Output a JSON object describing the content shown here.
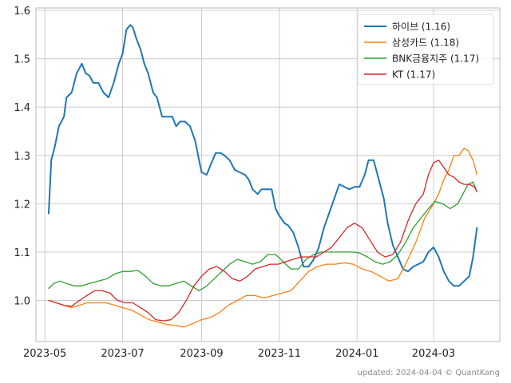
{
  "footnote": "updated: 2024-04-04 © QuantKang",
  "chart_data": {
    "type": "line",
    "title": "",
    "xlabel": "",
    "ylabel": "",
    "ylim": [
      0.915,
      1.605
    ],
    "xlim": [
      "2023-04-24",
      "2024-04-22"
    ],
    "grid": true,
    "legend_position": "top-right",
    "y_ticks": [
      1.0,
      1.1,
      1.2,
      1.3,
      1.4,
      1.5,
      1.6
    ],
    "y_tick_labels": [
      "1.0",
      "1.1",
      "1.2",
      "1.3",
      "1.4",
      "1.5",
      "1.6"
    ],
    "x_ticks": [
      "2023-05-01",
      "2023-07-01",
      "2023-09-01",
      "2023-11-01",
      "2024-01-01",
      "2024-03-01"
    ],
    "x_tick_labels": [
      "2023-05",
      "2023-07",
      "2023-09",
      "2023-11",
      "2024-01",
      "2024-03"
    ],
    "series": [
      {
        "name": "하이브 (1.16)",
        "color": "#1f77b4",
        "points": [
          [
            "2023-05-04",
            1.18
          ],
          [
            "2023-05-06",
            1.29
          ],
          [
            "2023-05-09",
            1.32
          ],
          [
            "2023-05-12",
            1.36
          ],
          [
            "2023-05-16",
            1.38
          ],
          [
            "2023-05-18",
            1.42
          ],
          [
            "2023-05-22",
            1.43
          ],
          [
            "2023-05-26",
            1.47
          ],
          [
            "2023-05-30",
            1.49
          ],
          [
            "2023-06-02",
            1.47
          ],
          [
            "2023-06-05",
            1.465
          ],
          [
            "2023-06-08",
            1.45
          ],
          [
            "2023-06-12",
            1.45
          ],
          [
            "2023-06-16",
            1.43
          ],
          [
            "2023-06-20",
            1.42
          ],
          [
            "2023-06-24",
            1.45
          ],
          [
            "2023-06-28",
            1.49
          ],
          [
            "2023-07-01",
            1.51
          ],
          [
            "2023-07-04",
            1.56
          ],
          [
            "2023-07-07",
            1.57
          ],
          [
            "2023-07-09",
            1.565
          ],
          [
            "2023-07-12",
            1.54
          ],
          [
            "2023-07-15",
            1.52
          ],
          [
            "2023-07-18",
            1.49
          ],
          [
            "2023-07-21",
            1.47
          ],
          [
            "2023-07-25",
            1.43
          ],
          [
            "2023-07-28",
            1.42
          ],
          [
            "2023-08-01",
            1.38
          ],
          [
            "2023-08-05",
            1.38
          ],
          [
            "2023-08-09",
            1.38
          ],
          [
            "2023-08-12",
            1.36
          ],
          [
            "2023-08-15",
            1.37
          ],
          [
            "2023-08-19",
            1.37
          ],
          [
            "2023-08-23",
            1.36
          ],
          [
            "2023-08-27",
            1.33
          ],
          [
            "2023-08-30",
            1.29
          ],
          [
            "2023-09-01",
            1.265
          ],
          [
            "2023-09-05",
            1.26
          ],
          [
            "2023-09-08",
            1.28
          ],
          [
            "2023-09-12",
            1.305
          ],
          [
            "2023-09-16",
            1.305
          ],
          [
            "2023-09-19",
            1.3
          ],
          [
            "2023-09-23",
            1.29
          ],
          [
            "2023-09-27",
            1.27
          ],
          [
            "2023-10-01",
            1.265
          ],
          [
            "2023-10-05",
            1.26
          ],
          [
            "2023-10-08",
            1.25
          ],
          [
            "2023-10-11",
            1.23
          ],
          [
            "2023-10-15",
            1.22
          ],
          [
            "2023-10-18",
            1.23
          ],
          [
            "2023-10-22",
            1.23
          ],
          [
            "2023-10-26",
            1.23
          ],
          [
            "2023-10-29",
            1.19
          ],
          [
            "2023-11-01",
            1.175
          ],
          [
            "2023-11-05",
            1.16
          ],
          [
            "2023-11-08",
            1.155
          ],
          [
            "2023-11-12",
            1.14
          ],
          [
            "2023-11-16",
            1.11
          ],
          [
            "2023-11-20",
            1.07
          ],
          [
            "2023-11-24",
            1.07
          ],
          [
            "2023-11-28",
            1.085
          ],
          [
            "2023-12-02",
            1.11
          ],
          [
            "2023-12-06",
            1.15
          ],
          [
            "2023-12-10",
            1.18
          ],
          [
            "2023-12-14",
            1.21
          ],
          [
            "2023-12-18",
            1.24
          ],
          [
            "2023-12-22",
            1.235
          ],
          [
            "2023-12-26",
            1.23
          ],
          [
            "2023-12-30",
            1.235
          ],
          [
            "2024-01-03",
            1.235
          ],
          [
            "2024-01-07",
            1.26
          ],
          [
            "2024-01-10",
            1.29
          ],
          [
            "2024-01-14",
            1.29
          ],
          [
            "2024-01-18",
            1.25
          ],
          [
            "2024-01-22",
            1.21
          ],
          [
            "2024-01-25",
            1.16
          ],
          [
            "2024-01-29",
            1.115
          ],
          [
            "2024-02-02",
            1.09
          ],
          [
            "2024-02-06",
            1.065
          ],
          [
            "2024-02-10",
            1.06
          ],
          [
            "2024-02-14",
            1.07
          ],
          [
            "2024-02-18",
            1.075
          ],
          [
            "2024-02-22",
            1.08
          ],
          [
            "2024-02-26",
            1.1
          ],
          [
            "2024-03-01",
            1.11
          ],
          [
            "2024-03-05",
            1.09
          ],
          [
            "2024-03-09",
            1.06
          ],
          [
            "2024-03-13",
            1.04
          ],
          [
            "2024-03-17",
            1.03
          ],
          [
            "2024-03-21",
            1.03
          ],
          [
            "2024-03-25",
            1.04
          ],
          [
            "2024-03-29",
            1.05
          ],
          [
            "2024-04-01",
            1.09
          ],
          [
            "2024-04-04",
            1.15
          ]
        ]
      },
      {
        "name": "삼성카드 (1.18)",
        "color": "#ff7f0e",
        "points": [
          [
            "2023-05-04",
            1.0
          ],
          [
            "2023-05-10",
            0.995
          ],
          [
            "2023-05-16",
            0.99
          ],
          [
            "2023-05-22",
            0.985
          ],
          [
            "2023-05-28",
            0.99
          ],
          [
            "2023-06-03",
            0.995
          ],
          [
            "2023-06-10",
            0.995
          ],
          [
            "2023-06-18",
            0.995
          ],
          [
            "2023-06-25",
            0.99
          ],
          [
            "2023-07-01",
            0.985
          ],
          [
            "2023-07-08",
            0.98
          ],
          [
            "2023-07-15",
            0.97
          ],
          [
            "2023-07-22",
            0.96
          ],
          [
            "2023-07-29",
            0.955
          ],
          [
            "2023-08-05",
            0.95
          ],
          [
            "2023-08-12",
            0.948
          ],
          [
            "2023-08-18",
            0.945
          ],
          [
            "2023-08-25",
            0.952
          ],
          [
            "2023-09-01",
            0.96
          ],
          [
            "2023-09-08",
            0.965
          ],
          [
            "2023-09-15",
            0.975
          ],
          [
            "2023-09-22",
            0.99
          ],
          [
            "2023-09-29",
            1.0
          ],
          [
            "2023-10-06",
            1.01
          ],
          [
            "2023-10-13",
            1.01
          ],
          [
            "2023-10-20",
            1.005
          ],
          [
            "2023-10-27",
            1.01
          ],
          [
            "2023-11-03",
            1.015
          ],
          [
            "2023-11-10",
            1.02
          ],
          [
            "2023-11-17",
            1.04
          ],
          [
            "2023-11-24",
            1.06
          ],
          [
            "2023-12-01",
            1.07
          ],
          [
            "2023-12-08",
            1.075
          ],
          [
            "2023-12-15",
            1.075
          ],
          [
            "2023-12-22",
            1.078
          ],
          [
            "2023-12-29",
            1.075
          ],
          [
            "2024-01-05",
            1.065
          ],
          [
            "2024-01-12",
            1.06
          ],
          [
            "2024-01-19",
            1.05
          ],
          [
            "2024-01-26",
            1.04
          ],
          [
            "2024-02-02",
            1.045
          ],
          [
            "2024-02-09",
            1.08
          ],
          [
            "2024-02-16",
            1.12
          ],
          [
            "2024-02-23",
            1.17
          ],
          [
            "2024-03-01",
            1.2
          ],
          [
            "2024-03-05",
            1.22
          ],
          [
            "2024-03-09",
            1.25
          ],
          [
            "2024-03-13",
            1.27
          ],
          [
            "2024-03-17",
            1.3
          ],
          [
            "2024-03-21",
            1.3
          ],
          [
            "2024-03-25",
            1.315
          ],
          [
            "2024-03-28",
            1.31
          ],
          [
            "2024-04-01",
            1.29
          ],
          [
            "2024-04-04",
            1.26
          ]
        ]
      },
      {
        "name": "BNK금융지주 (1.17)",
        "color": "#2ca02c",
        "points": [
          [
            "2023-05-04",
            1.025
          ],
          [
            "2023-05-08",
            1.035
          ],
          [
            "2023-05-13",
            1.04
          ],
          [
            "2023-05-18",
            1.035
          ],
          [
            "2023-05-24",
            1.03
          ],
          [
            "2023-05-30",
            1.03
          ],
          [
            "2023-06-05",
            1.035
          ],
          [
            "2023-06-12",
            1.04
          ],
          [
            "2023-06-19",
            1.045
          ],
          [
            "2023-06-25",
            1.055
          ],
          [
            "2023-07-01",
            1.06
          ],
          [
            "2023-07-07",
            1.06
          ],
          [
            "2023-07-13",
            1.062
          ],
          [
            "2023-07-19",
            1.05
          ],
          [
            "2023-07-25",
            1.035
          ],
          [
            "2023-07-31",
            1.03
          ],
          [
            "2023-08-06",
            1.03
          ],
          [
            "2023-08-12",
            1.035
          ],
          [
            "2023-08-18",
            1.04
          ],
          [
            "2023-08-24",
            1.03
          ],
          [
            "2023-08-30",
            1.02
          ],
          [
            "2023-09-05",
            1.03
          ],
          [
            "2023-09-11",
            1.045
          ],
          [
            "2023-09-17",
            1.06
          ],
          [
            "2023-09-23",
            1.075
          ],
          [
            "2023-09-29",
            1.085
          ],
          [
            "2023-10-05",
            1.08
          ],
          [
            "2023-10-11",
            1.075
          ],
          [
            "2023-10-17",
            1.08
          ],
          [
            "2023-10-23",
            1.095
          ],
          [
            "2023-10-29",
            1.095
          ],
          [
            "2023-11-04",
            1.08
          ],
          [
            "2023-11-10",
            1.065
          ],
          [
            "2023-11-16",
            1.065
          ],
          [
            "2023-11-22",
            1.085
          ],
          [
            "2023-11-28",
            1.095
          ],
          [
            "2023-12-04",
            1.1
          ],
          [
            "2023-12-10",
            1.1
          ],
          [
            "2023-12-16",
            1.1
          ],
          [
            "2023-12-22",
            1.1
          ],
          [
            "2023-12-28",
            1.1
          ],
          [
            "2024-01-03",
            1.098
          ],
          [
            "2024-01-09",
            1.09
          ],
          [
            "2024-01-15",
            1.08
          ],
          [
            "2024-01-21",
            1.075
          ],
          [
            "2024-01-27",
            1.08
          ],
          [
            "2024-02-02",
            1.095
          ],
          [
            "2024-02-08",
            1.12
          ],
          [
            "2024-02-14",
            1.15
          ],
          [
            "2024-02-20",
            1.17
          ],
          [
            "2024-02-26",
            1.19
          ],
          [
            "2024-03-02",
            1.205
          ],
          [
            "2024-03-08",
            1.2
          ],
          [
            "2024-03-14",
            1.19
          ],
          [
            "2024-03-20",
            1.2
          ],
          [
            "2024-03-24",
            1.22
          ],
          [
            "2024-03-28",
            1.24
          ],
          [
            "2024-04-01",
            1.245
          ],
          [
            "2024-04-04",
            1.225
          ]
        ]
      },
      {
        "name": "KT (1.17)",
        "color": "#d62728",
        "points": [
          [
            "2023-05-04",
            1.0
          ],
          [
            "2023-05-10",
            0.995
          ],
          [
            "2023-05-16",
            0.99
          ],
          [
            "2023-05-22",
            0.988
          ],
          [
            "2023-05-28",
            1.0
          ],
          [
            "2023-06-03",
            1.01
          ],
          [
            "2023-06-09",
            1.02
          ],
          [
            "2023-06-15",
            1.02
          ],
          [
            "2023-06-21",
            1.015
          ],
          [
            "2023-06-27",
            1.0
          ],
          [
            "2023-07-03",
            0.995
          ],
          [
            "2023-07-09",
            0.995
          ],
          [
            "2023-07-15",
            0.985
          ],
          [
            "2023-07-21",
            0.975
          ],
          [
            "2023-07-27",
            0.96
          ],
          [
            "2023-08-02",
            0.958
          ],
          [
            "2023-08-08",
            0.96
          ],
          [
            "2023-08-14",
            0.975
          ],
          [
            "2023-08-20",
            1.0
          ],
          [
            "2023-08-26",
            1.03
          ],
          [
            "2023-09-01",
            1.05
          ],
          [
            "2023-09-07",
            1.065
          ],
          [
            "2023-09-13",
            1.07
          ],
          [
            "2023-09-19",
            1.06
          ],
          [
            "2023-09-25",
            1.045
          ],
          [
            "2023-10-01",
            1.04
          ],
          [
            "2023-10-07",
            1.05
          ],
          [
            "2023-10-13",
            1.065
          ],
          [
            "2023-10-19",
            1.07
          ],
          [
            "2023-10-25",
            1.075
          ],
          [
            "2023-10-31",
            1.075
          ],
          [
            "2023-11-06",
            1.08
          ],
          [
            "2023-11-12",
            1.085
          ],
          [
            "2023-11-18",
            1.09
          ],
          [
            "2023-11-24",
            1.09
          ],
          [
            "2023-11-30",
            1.09
          ],
          [
            "2023-12-06",
            1.1
          ],
          [
            "2023-12-12",
            1.11
          ],
          [
            "2023-12-18",
            1.13
          ],
          [
            "2023-12-24",
            1.15
          ],
          [
            "2023-12-30",
            1.16
          ],
          [
            "2024-01-05",
            1.15
          ],
          [
            "2024-01-11",
            1.125
          ],
          [
            "2024-01-17",
            1.1
          ],
          [
            "2024-01-23",
            1.09
          ],
          [
            "2024-01-29",
            1.095
          ],
          [
            "2024-02-04",
            1.12
          ],
          [
            "2024-02-10",
            1.165
          ],
          [
            "2024-02-16",
            1.2
          ],
          [
            "2024-02-22",
            1.22
          ],
          [
            "2024-02-26",
            1.26
          ],
          [
            "2024-03-01",
            1.285
          ],
          [
            "2024-03-05",
            1.29
          ],
          [
            "2024-03-09",
            1.275
          ],
          [
            "2024-03-13",
            1.26
          ],
          [
            "2024-03-17",
            1.255
          ],
          [
            "2024-03-21",
            1.245
          ],
          [
            "2024-03-25",
            1.24
          ],
          [
            "2024-03-29",
            1.24
          ],
          [
            "2024-04-02",
            1.235
          ],
          [
            "2024-04-04",
            1.225
          ]
        ]
      }
    ]
  }
}
